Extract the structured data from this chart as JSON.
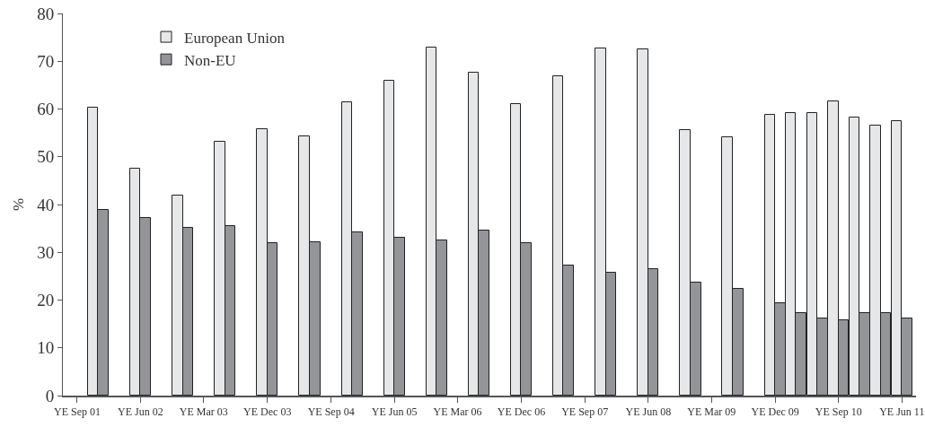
{
  "chart_data": {
    "type": "bar",
    "ylabel": "%",
    "x": [
      "2001-12",
      "2002-06",
      "2002-12",
      "2003-06",
      "2003-12",
      "2004-06",
      "2004-12",
      "2005-06",
      "2005-12",
      "2006-06",
      "2006-12",
      "2007-06",
      "2007-12",
      "2008-06",
      "2008-12",
      "2009-06",
      "2009-12",
      "2010-03",
      "2010-06",
      "2010-09",
      "2010-12",
      "2011-03",
      "2011-06"
    ],
    "series": [
      {
        "name": "European Union",
        "color": "#e6e7e9",
        "values": [
          60.3,
          47.5,
          41.9,
          53.2,
          55.7,
          54.2,
          61.4,
          65.9,
          72.9,
          67.7,
          61.1,
          66.9,
          72.7,
          72.4,
          55.5,
          54.0,
          58.7,
          59.2,
          59.2,
          61.6,
          58.3,
          56.6,
          57.4
        ]
      },
      {
        "name": "Non-EU",
        "color": "#939598",
        "values": [
          38.8,
          37.1,
          35.1,
          35.5,
          31.9,
          32.1,
          34.2,
          33.0,
          32.5,
          34.6,
          31.9,
          27.3,
          25.8,
          26.4,
          23.6,
          22.3,
          19.3,
          17.2,
          16.2,
          15.7,
          17.2,
          17.2,
          16.1
        ]
      }
    ],
    "xlim": [
      "2001-07",
      "2011-08"
    ],
    "xticks": [
      {
        "value": "2001-09",
        "label": "YE Sep 01"
      },
      {
        "value": "2002-06",
        "label": "YE Jun 02"
      },
      {
        "value": "2003-03",
        "label": "YE Mar 03"
      },
      {
        "value": "2003-12",
        "label": "YE Dec 03"
      },
      {
        "value": "2004-09",
        "label": "YE Sep 04"
      },
      {
        "value": "2005-06",
        "label": "YE Jun 05"
      },
      {
        "value": "2006-03",
        "label": "YE Mar 06"
      },
      {
        "value": "2006-12",
        "label": "YE Dec 06"
      },
      {
        "value": "2007-09",
        "label": "YE Sep 07"
      },
      {
        "value": "2008-06",
        "label": "YE Jun 08"
      },
      {
        "value": "2009-03",
        "label": "YE Mar 09"
      },
      {
        "value": "2009-12",
        "label": "YE Dec 09"
      },
      {
        "value": "2010-09",
        "label": "YE Sep 10"
      },
      {
        "value": "2011-06",
        "label": "YE Jun 11"
      }
    ],
    "ylim": [
      0,
      80
    ],
    "yticks": [
      0,
      10,
      20,
      30,
      40,
      50,
      60,
      70,
      80
    ],
    "grid": false,
    "legend": "top left"
  }
}
